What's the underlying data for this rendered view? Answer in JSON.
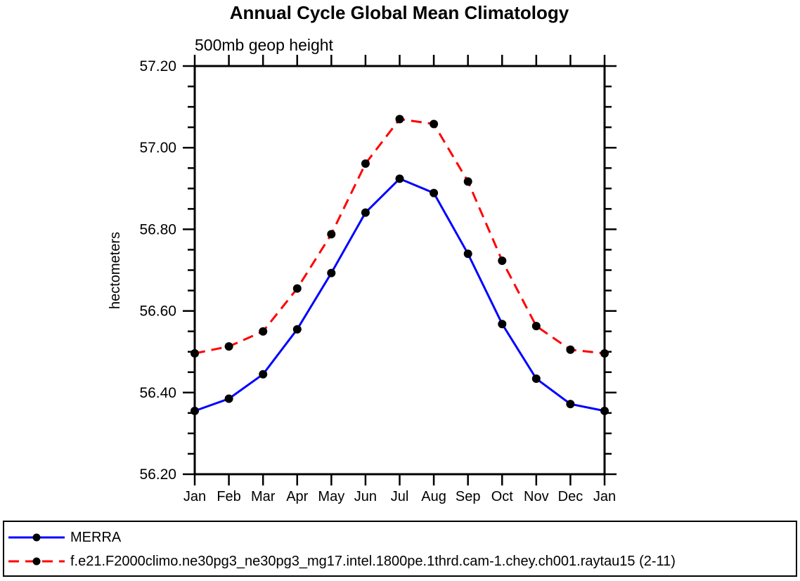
{
  "chart_data": {
    "type": "line",
    "title": "Annual Cycle Global Mean Climatology",
    "subtitle": "500mb geop height",
    "xlabel": "",
    "ylabel": "hectometers",
    "x_categories": [
      "Jan",
      "Feb",
      "Mar",
      "Apr",
      "May",
      "Jun",
      "Jul",
      "Aug",
      "Sep",
      "Oct",
      "Nov",
      "Dec",
      "Jan"
    ],
    "ylim": [
      56.2,
      57.2
    ],
    "y_major_step": 0.2,
    "y_minor_step": 0.05,
    "y_tick_labels": [
      "56.20",
      "56.40",
      "56.60",
      "56.80",
      "57.00",
      "57.20"
    ],
    "grid": false,
    "legend_position": "bottom",
    "series": [
      {
        "name": "MERRA",
        "color": "#0000ff",
        "line_style": "solid",
        "marker": "circle",
        "marker_color": "#000000",
        "values": [
          56.355,
          56.385,
          56.445,
          56.555,
          56.693,
          56.841,
          56.924,
          56.889,
          56.74,
          56.568,
          56.434,
          56.372,
          56.355
        ]
      },
      {
        "name": "f.e21.F2000climo.ne30pg3_ne30pg3_mg17.intel.1800pe.1thrd.cam-1.chey.ch001.raytau15 (2-11)",
        "color": "#ff0000",
        "line_style": "dashed",
        "marker": "circle",
        "marker_color": "#000000",
        "values": [
          56.496,
          56.513,
          56.55,
          56.655,
          56.788,
          56.961,
          57.07,
          57.058,
          56.917,
          56.723,
          56.563,
          56.505,
          56.496
        ]
      }
    ]
  },
  "colors": {
    "background": "#ffffff",
    "axis": "#000000",
    "text": "#000000"
  }
}
